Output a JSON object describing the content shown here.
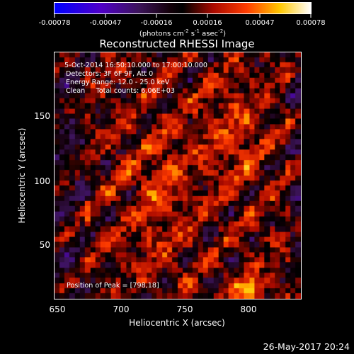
{
  "colorbar": {
    "labels": [
      "-0.00078",
      "-0.00047",
      "-0.00016",
      "0.00016",
      "0.00047",
      "0.00078"
    ],
    "unit_main": "(photons cm",
    "unit_exp1": "-2",
    "unit_mid1": " s",
    "unit_exp2": "-1",
    "unit_mid2": " asec",
    "unit_exp3": "-2",
    "unit_end": ")"
  },
  "title": "Reconstructed RHESSI Image",
  "annotations": {
    "line1": "5-Oct-2014 16:50:10.000 to 17:00:10.000",
    "line2": "Detectors: 3F 6F 9F, Att 0",
    "line3": "Energy Range: 12.0 - 25.0 keV",
    "line4": "Clean     Total counts: 6.06E+03",
    "peak": "Position of Peak = [798,18]"
  },
  "axes": {
    "xlabel": "Heliocentric X (arcsec)",
    "ylabel": "Heliocentric Y (arcsec)",
    "xticks": [
      "650",
      "700",
      "750",
      "800"
    ],
    "yticks": [
      "50",
      "100",
      "150"
    ]
  },
  "timestamp": "26-May-2017 20:24",
  "chart_data": {
    "type": "heatmap",
    "title": "Reconstructed RHESSI Image",
    "xlabel": "Heliocentric X (arcsec)",
    "ylabel": "Heliocentric Y (arcsec)",
    "xlim": [
      648,
      840
    ],
    "ylim": [
      2,
      194
    ],
    "color_range": [
      -0.00078,
      0.00078
    ],
    "peak": [
      798,
      18
    ]
  }
}
